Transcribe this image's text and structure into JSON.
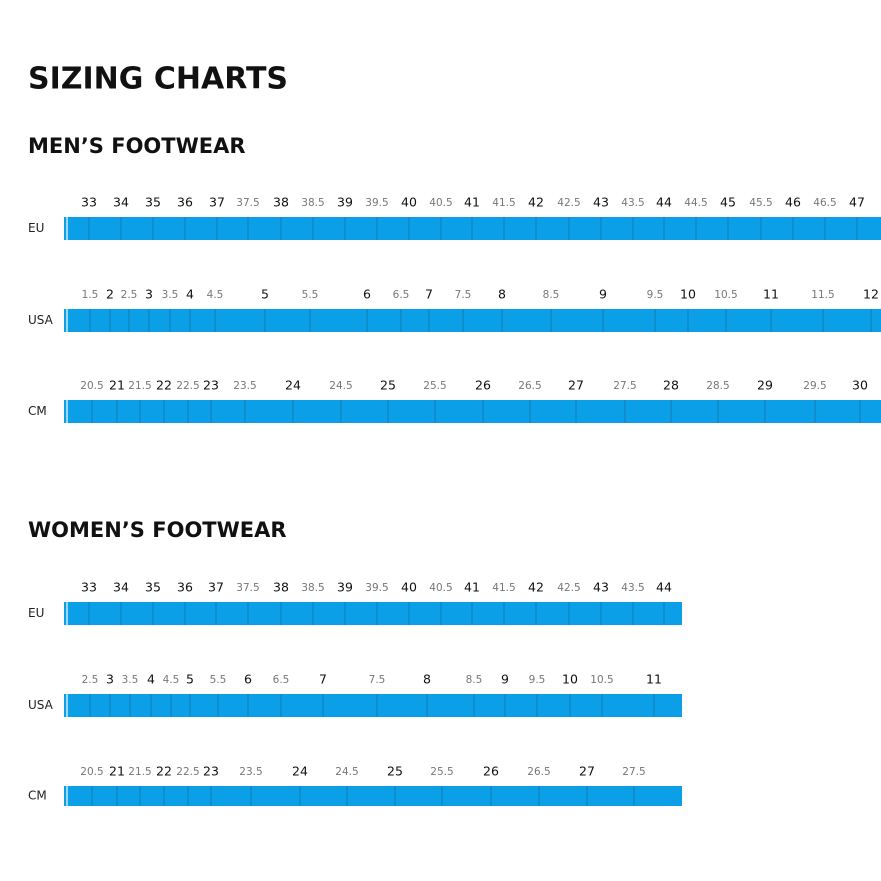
{
  "title": "SIZING CHARTS",
  "sections": [
    {
      "title": "MEN’S FOOTWEAR",
      "rows": [
        {
          "label": "EU",
          "sizes": [
            "33",
            "34",
            "35",
            "36",
            "37",
            "37.5",
            "38",
            "38.5",
            "39",
            "39.5",
            "40",
            "40.5",
            "41",
            "41.5",
            "42",
            "42.5",
            "43",
            "43.5",
            "44",
            "44.5",
            "45",
            "45.5",
            "46",
            "46.5",
            "47"
          ]
        },
        {
          "label": "USA",
          "sizes": [
            "1.5",
            "2",
            "2.5",
            "3",
            "3.5",
            "4",
            "4.5",
            "5",
            "5.5",
            "6",
            "6.5",
            "7",
            "7.5",
            "8",
            "8.5",
            "9",
            "9.5",
            "10",
            "10.5",
            "11",
            "11.5",
            "12"
          ]
        },
        {
          "label": "CM",
          "sizes": [
            "20.5",
            "21",
            "21.5",
            "22",
            "22.5",
            "23",
            "23.5",
            "24",
            "24.5",
            "25",
            "25.5",
            "26",
            "26.5",
            "27",
            "27.5",
            "28",
            "28.5",
            "29",
            "29.5",
            "30"
          ]
        }
      ]
    },
    {
      "title": "WOMEN’S FOOTWEAR",
      "rows": [
        {
          "label": "EU",
          "sizes": [
            "33",
            "34",
            "35",
            "36",
            "37",
            "37.5",
            "38",
            "38.5",
            "39",
            "39.5",
            "40",
            "40.5",
            "41",
            "41.5",
            "42",
            "42.5",
            "43",
            "43.5",
            "44"
          ]
        },
        {
          "label": "USA",
          "sizes": [
            "2.5",
            "3",
            "3.5",
            "4",
            "4.5",
            "5",
            "5.5",
            "6",
            "6.5",
            "7",
            "7.5",
            "8",
            "8.5",
            "9",
            "9.5",
            "10",
            "10.5",
            "11"
          ]
        },
        {
          "label": "CM",
          "sizes": [
            "20.5",
            "21",
            "21.5",
            "22",
            "22.5",
            "23",
            "23.5",
            "24",
            "24.5",
            "25",
            "25.5",
            "26",
            "26.5",
            "27",
            "27.5"
          ]
        }
      ]
    }
  ]
}
